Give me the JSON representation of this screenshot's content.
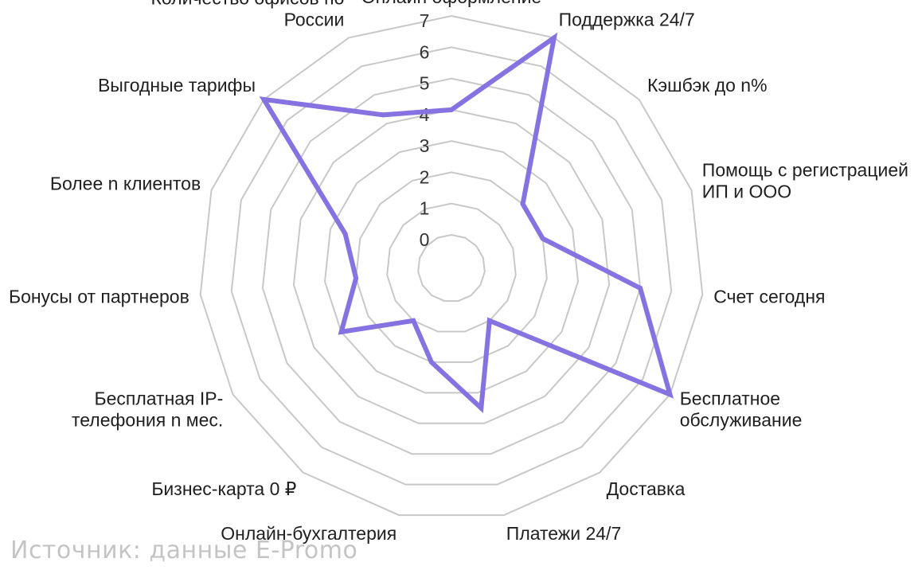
{
  "chart_data": {
    "type": "radar",
    "categories": [
      "Онлайн оформление",
      "Поддержка 24/7",
      "Кэшбэк до n%",
      "Помощь с регистрацией ИП и ООО",
      "Счет сегодня",
      "Бесплатное обслуживание",
      "Доставка",
      "Платежи 24/7",
      "Онлайн-бухгалтерия",
      "Бизнес-карта 0 ₽",
      "Бесплатная IP-телефония n мес.",
      "Бонусы от партнеров",
      "Более n клиентов",
      "Выгодные тарифы",
      "Количество офисов по России"
    ],
    "label_lines": [
      [
        "Онлайн оформление"
      ],
      [
        "Поддержка 24/7"
      ],
      [
        "Кэшбэк до n%"
      ],
      [
        "Помощь с регистрацией",
        "ИП и ООО"
      ],
      [
        "Счет сегодня"
      ],
      [
        "Бесплатное",
        "обслуживание"
      ],
      [
        "Доставка"
      ],
      [
        "Платежи 24/7"
      ],
      [
        "Онлайн-бухгалтерия"
      ],
      [
        "Бизнес-карта 0 ₽"
      ],
      [
        "Бесплатная IP-",
        "телефония n мес."
      ],
      [
        "Бонусы от партнеров"
      ],
      [
        "Более n клиентов"
      ],
      [
        "Выгодные тарифы"
      ],
      [
        "Количество офисов по",
        "России"
      ]
    ],
    "series": [
      {
        "values": [
          4,
          7,
          2,
          2,
          5,
          7,
          1,
          3.5,
          2,
          1,
          3,
          2,
          2.5,
          7,
          4.3
        ]
      }
    ],
    "rmin": 0,
    "rmax": 7,
    "ticks": [
      "0",
      "1",
      "2",
      "3",
      "4",
      "5",
      "6",
      "7"
    ],
    "grid": true,
    "legend": "none",
    "colors": {
      "series": "#8672e0",
      "grid": "#c8c8c8"
    }
  },
  "source": "Источник: данные E-Promo"
}
